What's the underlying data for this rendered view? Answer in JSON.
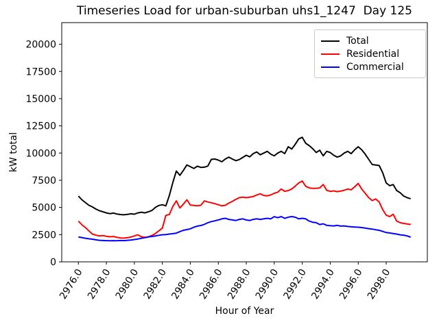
{
  "figure": {
    "background": "#ffffff"
  },
  "chart_data": {
    "type": "line",
    "title": "Timeseries Load for urban-suburban uhs1_1247  Day 125",
    "xlabel": "Hour of Year",
    "ylabel": "kW total",
    "xlim": [
      2974.81,
      3000.94
    ],
    "ylim": [
      0,
      21990
    ],
    "grid": false,
    "legend_position": "upper right",
    "xticks": {
      "values": [
        2976,
        2978,
        2980,
        2982,
        2984,
        2986,
        2988,
        2990,
        2992,
        2994,
        2996,
        2998
      ],
      "labels": [
        "2976.0",
        "2978.0",
        "2980.0",
        "2982.0",
        "2984.0",
        "2986.0",
        "2988.0",
        "2990.0",
        "2992.0",
        "2994.0",
        "2996.0",
        "2998.0"
      ]
    },
    "yticks": {
      "values": [
        0,
        2500,
        5000,
        7500,
        10000,
        12500,
        15000,
        17500,
        20000
      ],
      "labels": [
        "0",
        "2500",
        "5000",
        "7500",
        "10000",
        "12500",
        "15000",
        "17500",
        "20000"
      ]
    },
    "x": [
      2976.0,
      2976.25,
      2976.5,
      2976.75,
      2977.0,
      2977.25,
      2977.5,
      2977.75,
      2978.0,
      2978.25,
      2978.5,
      2978.75,
      2979.0,
      2979.25,
      2979.5,
      2979.75,
      2980.0,
      2980.25,
      2980.5,
      2980.75,
      2981.0,
      2981.25,
      2981.5,
      2981.75,
      2982.0,
      2982.25,
      2982.5,
      2982.75,
      2983.0,
      2983.25,
      2983.5,
      2983.75,
      2984.0,
      2984.25,
      2984.5,
      2984.75,
      2985.0,
      2985.25,
      2985.5,
      2985.75,
      2986.0,
      2986.25,
      2986.5,
      2986.75,
      2987.0,
      2987.25,
      2987.5,
      2987.75,
      2988.0,
      2988.25,
      2988.5,
      2988.75,
      2989.0,
      2989.25,
      2989.5,
      2989.75,
      2990.0,
      2990.25,
      2990.5,
      2990.75,
      2991.0,
      2991.25,
      2991.5,
      2991.75,
      2992.0,
      2992.25,
      2992.5,
      2992.75,
      2993.0,
      2993.25,
      2993.5,
      2993.75,
      2994.0,
      2994.25,
      2994.5,
      2994.75,
      2995.0,
      2995.25,
      2995.5,
      2995.75,
      2996.0,
      2996.25,
      2996.5,
      2996.75,
      2997.0,
      2997.25,
      2997.5,
      2997.75,
      2998.0,
      2998.25,
      2998.5,
      2998.75,
      2999.0,
      2999.25,
      2999.5,
      2999.75
    ],
    "series": [
      {
        "name": "Total",
        "color": "#000000",
        "values": [
          6050,
          5700,
          5450,
          5200,
          5050,
          4850,
          4700,
          4600,
          4500,
          4430,
          4480,
          4400,
          4350,
          4320,
          4360,
          4420,
          4380,
          4500,
          4560,
          4500,
          4600,
          4720,
          5000,
          5180,
          5250,
          5150,
          6100,
          7300,
          8350,
          7950,
          8400,
          8900,
          8750,
          8580,
          8790,
          8680,
          8700,
          8800,
          9420,
          9450,
          9350,
          9200,
          9450,
          9630,
          9450,
          9300,
          9400,
          9600,
          9800,
          9650,
          9950,
          10100,
          9840,
          10000,
          10160,
          9900,
          9740,
          10000,
          10160,
          9950,
          10580,
          10370,
          10800,
          11300,
          11450,
          10900,
          10680,
          10400,
          10050,
          10260,
          9740,
          10160,
          10050,
          9800,
          9630,
          9740,
          10000,
          10160,
          9950,
          10300,
          10580,
          10300,
          9900,
          9420,
          8950,
          8900,
          8850,
          8200,
          7250,
          7000,
          7100,
          6550,
          6350,
          6050,
          5900,
          5800
        ]
      },
      {
        "name": "Residential",
        "color": "#ff0000",
        "values": [
          3750,
          3400,
          3150,
          2850,
          2550,
          2450,
          2380,
          2420,
          2350,
          2300,
          2330,
          2250,
          2200,
          2180,
          2220,
          2280,
          2380,
          2480,
          2300,
          2250,
          2300,
          2420,
          2600,
          2850,
          3100,
          4270,
          4350,
          5100,
          5600,
          4950,
          5300,
          5700,
          5220,
          5180,
          5150,
          5200,
          5600,
          5500,
          5430,
          5350,
          5250,
          5150,
          5200,
          5400,
          5550,
          5740,
          5900,
          5950,
          5900,
          5950,
          6000,
          6150,
          6250,
          6100,
          6060,
          6150,
          6300,
          6400,
          6690,
          6480,
          6550,
          6700,
          6950,
          7250,
          7420,
          6950,
          6790,
          6760,
          6760,
          6800,
          7110,
          6580,
          6480,
          6520,
          6450,
          6500,
          6580,
          6690,
          6620,
          6900,
          7210,
          6700,
          6300,
          5900,
          5630,
          5780,
          5500,
          4800,
          4290,
          4160,
          4370,
          3740,
          3600,
          3530,
          3480,
          3430
        ]
      },
      {
        "name": "Commercial",
        "color": "#0000ff",
        "values": [
          2280,
          2230,
          2170,
          2120,
          2080,
          2020,
          1980,
          1960,
          1950,
          1940,
          1950,
          1940,
          1960,
          1950,
          1980,
          2000,
          2050,
          2100,
          2160,
          2220,
          2280,
          2330,
          2380,
          2440,
          2490,
          2500,
          2550,
          2590,
          2640,
          2780,
          2900,
          2960,
          3040,
          3180,
          3280,
          3340,
          3440,
          3600,
          3700,
          3770,
          3850,
          3950,
          4000,
          3900,
          3850,
          3800,
          3900,
          3950,
          3850,
          3800,
          3900,
          3950,
          3900,
          3950,
          4000,
          3950,
          4150,
          4060,
          4160,
          4000,
          4100,
          4160,
          4100,
          3950,
          4000,
          3950,
          3740,
          3640,
          3600,
          3430,
          3500,
          3350,
          3320,
          3300,
          3350,
          3280,
          3300,
          3250,
          3220,
          3200,
          3180,
          3150,
          3100,
          3050,
          3010,
          2950,
          2900,
          2800,
          2690,
          2650,
          2600,
          2550,
          2480,
          2450,
          2380,
          2270
        ]
      }
    ]
  }
}
